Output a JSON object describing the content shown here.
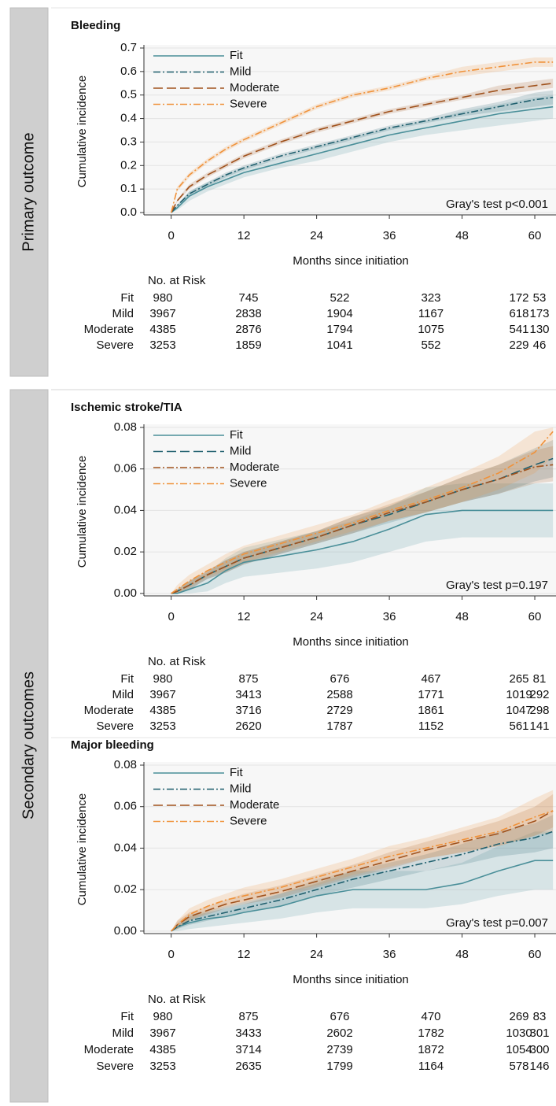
{
  "row_labels": [
    "Primary outcome",
    "Secondary outcomes"
  ],
  "chart_data": [
    {
      "type": "line",
      "title": "Bleeding",
      "xlabel": "Months since initiation",
      "ylabel": "Cumulative incidence",
      "annotation": "Gray's test p<0.001",
      "x": [
        0,
        1,
        3,
        6,
        9,
        12,
        18,
        24,
        30,
        36,
        42,
        48,
        54,
        60,
        63
      ],
      "xlim": [
        -4.5,
        63.5
      ],
      "xticks": [
        0,
        12,
        24,
        36,
        48,
        60
      ],
      "ylim": [
        -0.01,
        0.7
      ],
      "yticks": [
        {
          "value": 0,
          "label": "0.0"
        },
        0.1,
        0.2,
        0.3,
        0.4,
        0.5,
        0.6,
        0.7
      ],
      "grid": true,
      "legend": "upper left",
      "series": [
        {
          "name": "Fit",
          "color": "#4a8f99",
          "linestyle": "solid",
          "values": [
            0,
            0.02,
            0.07,
            0.11,
            0.14,
            0.17,
            0.21,
            0.25,
            0.29,
            0.33,
            0.36,
            0.39,
            0.42,
            0.44,
            0.45
          ],
          "lower": [
            0,
            0.01,
            0.05,
            0.09,
            0.12,
            0.15,
            0.19,
            0.22,
            0.26,
            0.3,
            0.33,
            0.35,
            0.37,
            0.39,
            0.4
          ],
          "upper": [
            0,
            0.03,
            0.09,
            0.13,
            0.16,
            0.19,
            0.23,
            0.28,
            0.32,
            0.36,
            0.39,
            0.43,
            0.46,
            0.49,
            0.5
          ]
        },
        {
          "name": "Mild",
          "color": "#1f5f6e",
          "linestyle": "dashdot",
          "values": [
            0,
            0.03,
            0.08,
            0.12,
            0.16,
            0.19,
            0.24,
            0.28,
            0.32,
            0.36,
            0.39,
            0.42,
            0.45,
            0.48,
            0.49
          ],
          "lower": [
            0,
            0.025,
            0.07,
            0.11,
            0.15,
            0.18,
            0.23,
            0.27,
            0.31,
            0.35,
            0.38,
            0.41,
            0.43,
            0.45,
            0.46
          ],
          "upper": [
            0,
            0.035,
            0.09,
            0.13,
            0.17,
            0.2,
            0.25,
            0.29,
            0.33,
            0.37,
            0.4,
            0.44,
            0.47,
            0.51,
            0.52
          ]
        },
        {
          "name": "Moderate",
          "color": "#a0521d",
          "linestyle": "dashed",
          "values": [
            0,
            0.05,
            0.11,
            0.16,
            0.2,
            0.24,
            0.3,
            0.35,
            0.39,
            0.43,
            0.46,
            0.49,
            0.52,
            0.54,
            0.55
          ],
          "lower": [
            0,
            0.045,
            0.1,
            0.15,
            0.19,
            0.23,
            0.29,
            0.34,
            0.38,
            0.42,
            0.45,
            0.48,
            0.5,
            0.52,
            0.53
          ],
          "upper": [
            0,
            0.055,
            0.12,
            0.17,
            0.21,
            0.25,
            0.31,
            0.36,
            0.4,
            0.44,
            0.47,
            0.5,
            0.54,
            0.56,
            0.57
          ]
        },
        {
          "name": "Severe",
          "color": "#f0923a",
          "linestyle": "dashdot",
          "values": [
            0,
            0.1,
            0.16,
            0.22,
            0.27,
            0.31,
            0.38,
            0.45,
            0.5,
            0.53,
            0.57,
            0.6,
            0.62,
            0.64,
            0.64
          ],
          "lower": [
            0,
            0.09,
            0.15,
            0.21,
            0.26,
            0.3,
            0.37,
            0.44,
            0.49,
            0.52,
            0.56,
            0.58,
            0.6,
            0.62,
            0.62
          ],
          "upper": [
            0,
            0.11,
            0.17,
            0.23,
            0.28,
            0.32,
            0.39,
            0.46,
            0.51,
            0.54,
            0.58,
            0.62,
            0.64,
            0.66,
            0.66
          ]
        }
      ],
      "risk_table": {
        "title": "No. at Risk",
        "rows": [
          [
            980,
            745,
            522,
            323,
            172,
            53
          ],
          [
            3967,
            2838,
            1904,
            1167,
            618,
            173
          ],
          [
            4385,
            2876,
            1794,
            1075,
            541,
            130
          ],
          [
            3253,
            1859,
            1041,
            552,
            229,
            46
          ]
        ]
      }
    },
    {
      "type": "line",
      "title": "Ischemic stroke/TIA",
      "xlabel": "Months since initiation",
      "ylabel": "Cumulative incidence",
      "annotation": "Gray's test p=0.197",
      "x": [
        0,
        1,
        3,
        6,
        9,
        12,
        18,
        24,
        30,
        36,
        42,
        48,
        54,
        60,
        63
      ],
      "xlim": [
        -4.5,
        63.5
      ],
      "xticks": [
        0,
        12,
        24,
        36,
        48,
        60
      ],
      "ylim": [
        -0.0012,
        0.08
      ],
      "yticks": [
        {
          "value": 0,
          "label": "0.00"
        },
        0.02,
        0.04,
        0.06,
        0.08
      ],
      "grid": true,
      "legend": "upper left",
      "series": [
        {
          "name": "Fit",
          "color": "#4a8f99",
          "linestyle": "solid",
          "values": [
            0,
            0,
            0.002,
            0.005,
            0.011,
            0.015,
            0.018,
            0.021,
            0.025,
            0.031,
            0.038,
            0.04,
            0.04,
            0.04,
            0.04
          ],
          "lower": [
            0,
            0,
            0,
            0.001,
            0.005,
            0.008,
            0.01,
            0.012,
            0.015,
            0.02,
            0.025,
            0.027,
            0.027,
            0.027,
            0.027
          ],
          "upper": [
            0,
            0.002,
            0.006,
            0.01,
            0.017,
            0.022,
            0.026,
            0.03,
            0.035,
            0.042,
            0.051,
            0.053,
            0.053,
            0.053,
            0.053
          ]
        },
        {
          "name": "Mild",
          "color": "#1f5f6e",
          "linestyle": "dashed",
          "values": [
            0,
            0.001,
            0.004,
            0.009,
            0.013,
            0.017,
            0.022,
            0.027,
            0.033,
            0.038,
            0.044,
            0.05,
            0.055,
            0.062,
            0.065
          ],
          "lower": [
            0,
            0,
            0.002,
            0.007,
            0.01,
            0.014,
            0.019,
            0.024,
            0.029,
            0.034,
            0.039,
            0.044,
            0.048,
            0.054,
            0.056
          ],
          "upper": [
            0,
            0.002,
            0.006,
            0.011,
            0.016,
            0.02,
            0.025,
            0.03,
            0.037,
            0.042,
            0.049,
            0.056,
            0.062,
            0.07,
            0.074
          ]
        },
        {
          "name": "Moderate",
          "color": "#a0521d",
          "linestyle": "dashdot",
          "values": [
            0,
            0.001,
            0.004,
            0.009,
            0.013,
            0.017,
            0.022,
            0.027,
            0.033,
            0.039,
            0.044,
            0.05,
            0.055,
            0.061,
            0.062
          ],
          "lower": [
            0,
            0,
            0.002,
            0.007,
            0.01,
            0.014,
            0.019,
            0.024,
            0.029,
            0.035,
            0.039,
            0.044,
            0.048,
            0.053,
            0.054
          ],
          "upper": [
            0,
            0.002,
            0.006,
            0.011,
            0.016,
            0.02,
            0.025,
            0.03,
            0.037,
            0.043,
            0.049,
            0.056,
            0.062,
            0.069,
            0.071
          ]
        },
        {
          "name": "Severe",
          "color": "#f0923a",
          "linestyle": "dashdot",
          "values": [
            0,
            0.002,
            0.006,
            0.011,
            0.015,
            0.019,
            0.024,
            0.029,
            0.034,
            0.04,
            0.045,
            0.051,
            0.058,
            0.068,
            0.078
          ],
          "lower": [
            0,
            0,
            0.003,
            0.008,
            0.011,
            0.015,
            0.02,
            0.025,
            0.03,
            0.035,
            0.039,
            0.044,
            0.05,
            0.058,
            0.066
          ],
          "upper": [
            0,
            0.004,
            0.009,
            0.014,
            0.019,
            0.023,
            0.028,
            0.033,
            0.038,
            0.045,
            0.051,
            0.058,
            0.066,
            0.078,
            0.08
          ]
        }
      ],
      "risk_table": {
        "title": "No. at Risk",
        "rows": [
          [
            980,
            875,
            676,
            467,
            265,
            81
          ],
          [
            3967,
            3413,
            2588,
            1771,
            1019,
            292
          ],
          [
            4385,
            3716,
            2729,
            1861,
            1047,
            298
          ],
          [
            3253,
            2620,
            1787,
            1152,
            561,
            141
          ]
        ]
      }
    },
    {
      "type": "line",
      "title": "Major bleeding",
      "xlabel": "Months since initiation",
      "ylabel": "Cumulative incidence",
      "annotation": "Gray's test p=0.007",
      "x": [
        0,
        1,
        3,
        6,
        9,
        12,
        18,
        24,
        30,
        36,
        42,
        48,
        54,
        60,
        63
      ],
      "xlim": [
        -4.5,
        63.5
      ],
      "xticks": [
        0,
        12,
        24,
        36,
        48,
        60
      ],
      "ylim": [
        -0.0012,
        0.08
      ],
      "yticks": [
        {
          "value": 0,
          "label": "0.00"
        },
        0.02,
        0.04,
        0.06,
        0.08
      ],
      "grid": true,
      "legend": "upper left",
      "series": [
        {
          "name": "Fit",
          "color": "#4a8f99",
          "linestyle": "solid",
          "values": [
            0,
            0.002,
            0.004,
            0.006,
            0.007,
            0.009,
            0.012,
            0.017,
            0.02,
            0.02,
            0.02,
            0.023,
            0.029,
            0.034,
            0.034
          ],
          "lower": [
            0,
            0,
            0.001,
            0.002,
            0.003,
            0.004,
            0.006,
            0.009,
            0.011,
            0.011,
            0.011,
            0.013,
            0.017,
            0.02,
            0.02
          ],
          "upper": [
            0,
            0.004,
            0.008,
            0.01,
            0.012,
            0.014,
            0.018,
            0.025,
            0.029,
            0.029,
            0.029,
            0.033,
            0.041,
            0.048,
            0.048
          ]
        },
        {
          "name": "Mild",
          "color": "#1f5f6e",
          "linestyle": "dashdot",
          "values": [
            0,
            0.002,
            0.005,
            0.007,
            0.009,
            0.011,
            0.015,
            0.02,
            0.025,
            0.029,
            0.033,
            0.037,
            0.042,
            0.045,
            0.048
          ],
          "lower": [
            0,
            0.001,
            0.003,
            0.005,
            0.007,
            0.009,
            0.012,
            0.017,
            0.021,
            0.025,
            0.029,
            0.032,
            0.036,
            0.038,
            0.04
          ],
          "upper": [
            0,
            0.003,
            0.007,
            0.009,
            0.011,
            0.013,
            0.018,
            0.023,
            0.029,
            0.033,
            0.037,
            0.042,
            0.048,
            0.052,
            0.056
          ]
        },
        {
          "name": "Moderate",
          "color": "#a0521d",
          "linestyle": "dashed",
          "values": [
            0,
            0.003,
            0.007,
            0.01,
            0.013,
            0.015,
            0.019,
            0.024,
            0.029,
            0.034,
            0.039,
            0.043,
            0.047,
            0.053,
            0.058
          ],
          "lower": [
            0,
            0.001,
            0.005,
            0.008,
            0.011,
            0.013,
            0.016,
            0.021,
            0.026,
            0.03,
            0.035,
            0.038,
            0.041,
            0.046,
            0.05
          ],
          "upper": [
            0,
            0.005,
            0.009,
            0.012,
            0.015,
            0.018,
            0.022,
            0.027,
            0.032,
            0.038,
            0.043,
            0.048,
            0.053,
            0.06,
            0.066
          ]
        },
        {
          "name": "Severe",
          "color": "#f0923a",
          "linestyle": "dashdot",
          "values": [
            0,
            0.003,
            0.008,
            0.012,
            0.015,
            0.017,
            0.021,
            0.026,
            0.031,
            0.036,
            0.04,
            0.044,
            0.048,
            0.055,
            0.058
          ],
          "lower": [
            0,
            0.001,
            0.005,
            0.009,
            0.012,
            0.014,
            0.018,
            0.022,
            0.027,
            0.031,
            0.035,
            0.038,
            0.041,
            0.046,
            0.048
          ],
          "upper": [
            0,
            0.005,
            0.011,
            0.015,
            0.018,
            0.021,
            0.025,
            0.03,
            0.035,
            0.041,
            0.045,
            0.05,
            0.055,
            0.064,
            0.068
          ]
        }
      ],
      "risk_table": {
        "title": "No. at Risk",
        "rows": [
          [
            980,
            875,
            676,
            470,
            269,
            83
          ],
          [
            3967,
            3433,
            2602,
            1782,
            1030,
            301
          ],
          [
            4385,
            3714,
            2739,
            1872,
            1054,
            300
          ],
          [
            3253,
            2635,
            1799,
            1164,
            578,
            146
          ]
        ]
      }
    }
  ]
}
